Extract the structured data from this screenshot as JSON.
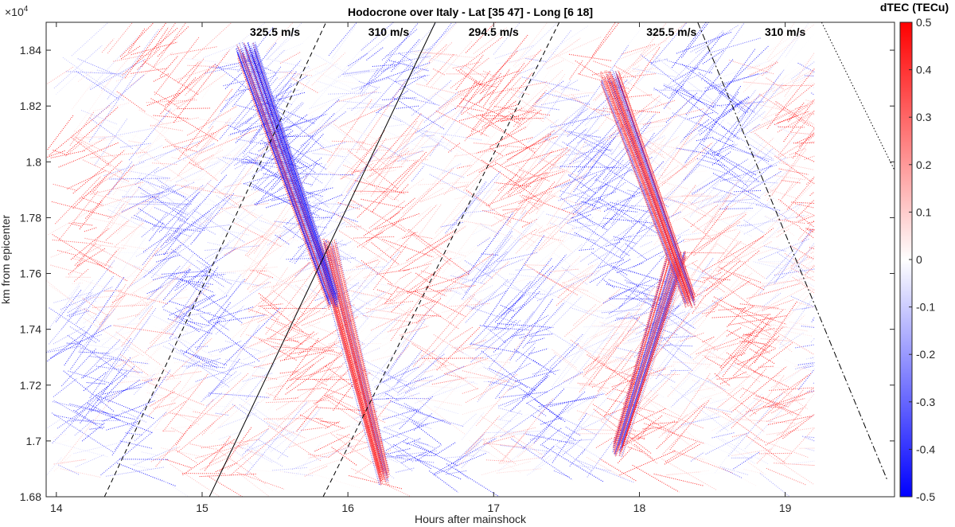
{
  "chart_data": {
    "type": "scatter",
    "title": "Hodocrone over Italy - Lat [35 47] - Long [6 18]",
    "xlabel": "Hours after mainshock",
    "ylabel": "km from epicenter",
    "y_exponent_label": "×10",
    "y_exponent_power": "4",
    "xlim": [
      13.93,
      19.75
    ],
    "ylim": [
      1.68,
      1.85
    ],
    "x_ticks": [
      14,
      15,
      16,
      17,
      18,
      19
    ],
    "x_tick_labels": [
      "14",
      "15",
      "16",
      "17",
      "18",
      "19"
    ],
    "y_ticks": [
      1.68,
      1.7,
      1.72,
      1.74,
      1.76,
      1.78,
      1.8,
      1.82,
      1.84
    ],
    "y_tick_labels": [
      "1.68",
      "1.7",
      "1.72",
      "1.74",
      "1.76",
      "1.78",
      "1.8",
      "1.82",
      "1.84"
    ],
    "grid": false,
    "colorbar": {
      "title": "dTEC (TECu)",
      "range": [
        -0.5,
        0.5
      ],
      "ticks": [
        0.5,
        0.4,
        0.3,
        0.2,
        0.1,
        0,
        -0.1,
        -0.2,
        -0.3,
        -0.4,
        -0.5
      ],
      "tick_labels": [
        "0.5",
        "0.4",
        "0.3",
        "0.2",
        "0.1",
        "0",
        "-0.1",
        "-0.2",
        "-0.3",
        "-0.4",
        "-0.5"
      ],
      "color_low": "#0000ff",
      "color_mid": "#ffffff",
      "color_high": "#ff0000"
    },
    "velocity_lines": [
      {
        "label": "325.5 m/s",
        "style": "dashed",
        "x0": 14.33,
        "y0": 1.68,
        "x1": 15.85,
        "y1": 1.85,
        "label_x": 15.5
      },
      {
        "label": "310 m/s",
        "style": "solid",
        "x0": 15.05,
        "y0": 1.68,
        "x1": 16.6,
        "y1": 1.85,
        "label_x": 16.28
      },
      {
        "label": "294.5 m/s",
        "style": "dashed",
        "x0": 15.83,
        "y0": 1.68,
        "x1": 17.45,
        "y1": 1.85,
        "label_x": 17.0
      },
      {
        "label": "325.5 m/s",
        "style": "dashdot",
        "x0": 18.4,
        "y0": 1.85,
        "x1": 19.7,
        "y1": 1.686,
        "label_x": 18.22
      },
      {
        "label": "310 m/s",
        "style": "dotted",
        "x0": 19.25,
        "y0": 1.85,
        "x1": 19.75,
        "y1": 1.797,
        "label_x": 19.0
      }
    ],
    "series": [
      {
        "type": "scatter",
        "color_scale": "dTEC",
        "x_range": [
          13.93,
          19.2
        ],
        "y_range": [
          1.687,
          1.84
        ]
      }
    ]
  }
}
